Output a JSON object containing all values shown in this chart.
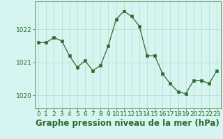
{
  "x": [
    0,
    1,
    2,
    3,
    4,
    5,
    6,
    7,
    8,
    9,
    10,
    11,
    12,
    13,
    14,
    15,
    16,
    17,
    18,
    19,
    20,
    21,
    22,
    23
  ],
  "y": [
    1021.6,
    1021.6,
    1021.75,
    1021.65,
    1021.2,
    1020.85,
    1021.05,
    1020.75,
    1020.9,
    1021.5,
    1022.3,
    1022.55,
    1022.4,
    1022.1,
    1021.2,
    1021.2,
    1020.65,
    1020.35,
    1020.1,
    1020.05,
    1020.45,
    1020.45,
    1020.35,
    1020.75
  ],
  "line_color": "#2d6a2d",
  "marker_color": "#2d6a2d",
  "bg_color": "#d6f5f0",
  "grid_color": "#b8d8d0",
  "ytick_color": "#2d6a2d",
  "xtick_color": "#2d6a2d",
  "xlabel": "Graphe pression niveau de la mer (hPa)",
  "xlabel_color": "#2d6a2d",
  "ylim": [
    1019.6,
    1022.85
  ],
  "yticks": [
    1020,
    1021,
    1022
  ],
  "border_color": "#5a8a5a",
  "tick_fontsize": 6.5,
  "xlabel_fontsize": 8.5
}
